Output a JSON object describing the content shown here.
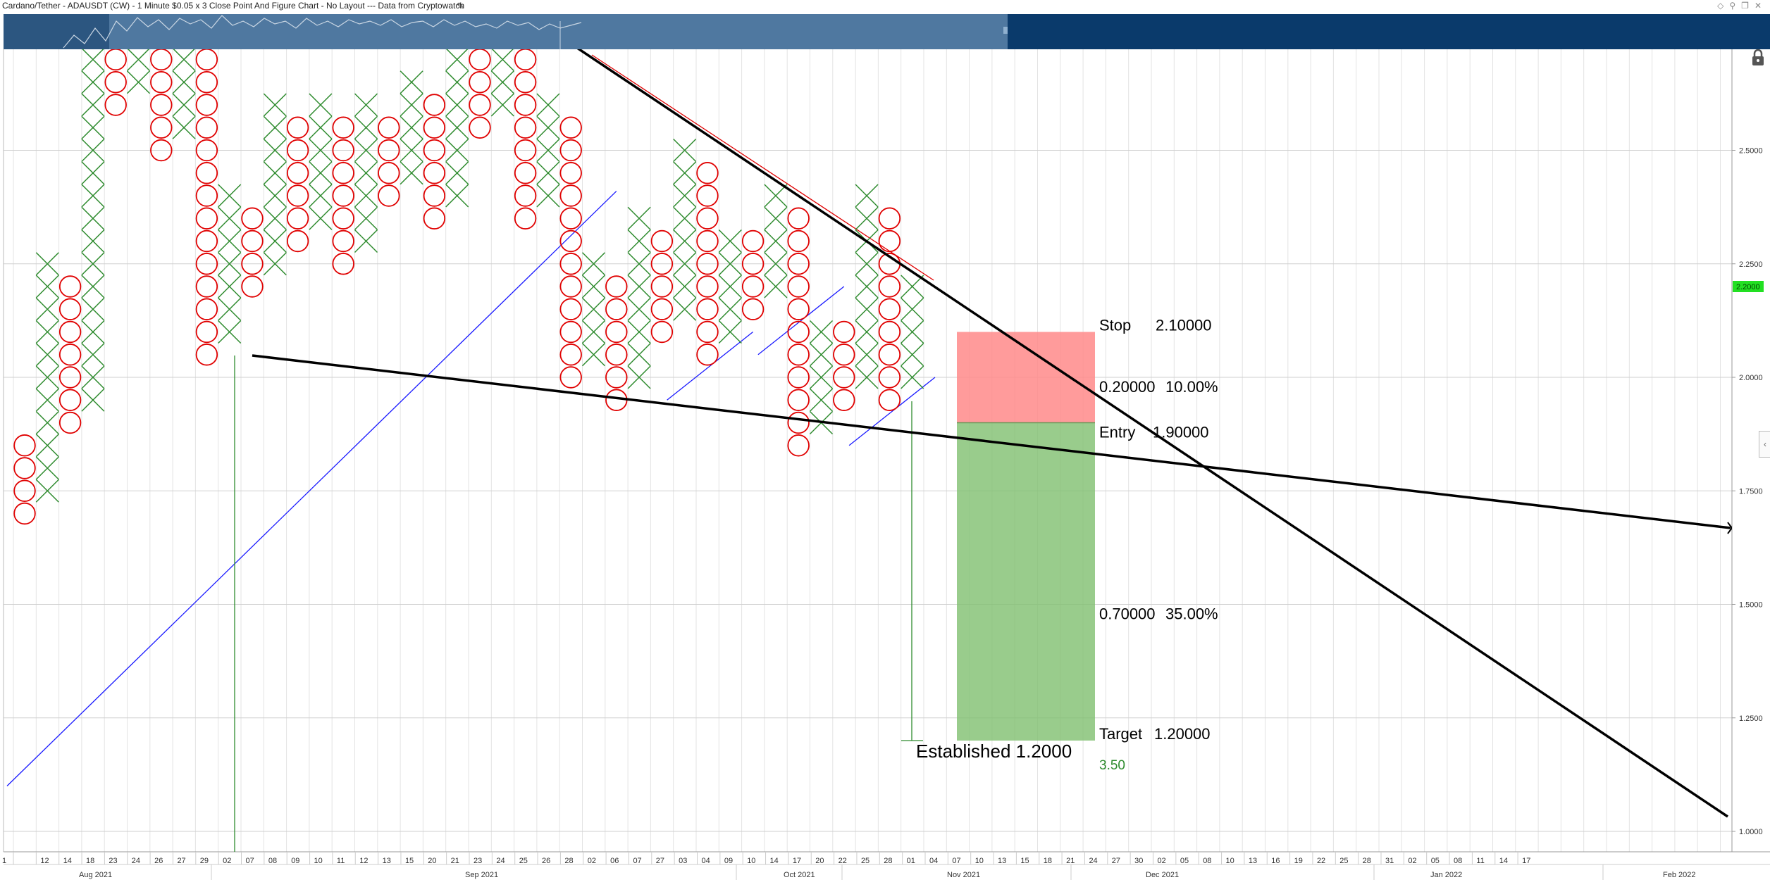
{
  "window": {
    "title": "Cardano/Tether - ADAUSDT (CW) - 1 Minute $0.05 x 3 Close Point And Figure Chart - No Layout --- Data from Cryptowatch",
    "edit_icon": "pencil-icon",
    "controls": [
      "diamond-icon",
      "pin-icon",
      "restore-icon",
      "close-icon"
    ]
  },
  "colors": {
    "x_mark": "#2e8b2e",
    "o_mark": "#e00000",
    "trendline": "#000000",
    "support_line": "#1a1aff",
    "stop_zone": "#ff8a8a",
    "target_zone": "#7fbf6f",
    "current_price_badge": "#22e022",
    "established_line": "#2e8b2e",
    "navigator": "#0a3a6b"
  },
  "chart_data": {
    "type": "point-and-figure",
    "box_size": 0.05,
    "reversal": 3,
    "price_axis": {
      "min": 1.0,
      "max": 2.5,
      "visible_range": [
        0.98,
        2.72
      ],
      "ticks": [
        "2.5000",
        "2.2500",
        "2.0000",
        "1.7500",
        "1.5000",
        "1.2500",
        "1.0000"
      ],
      "current_price": "2.2000",
      "position": "right",
      "grid": true
    },
    "time_axis": {
      "day_labels": [
        "1",
        "12",
        "14",
        "18",
        "23",
        "24",
        "26",
        "27",
        "29",
        "02",
        "07",
        "08",
        "09",
        "10",
        "11",
        "12",
        "13",
        "15",
        "20",
        "21",
        "23",
        "24",
        "25",
        "26",
        "28",
        "02",
        "06",
        "07",
        "27",
        "03",
        "04",
        "09",
        "10",
        "14",
        "17",
        "20",
        "22",
        "25",
        "28",
        "01",
        "04",
        "07",
        "10",
        "13",
        "15",
        "18",
        "21",
        "24",
        "27",
        "30",
        "02",
        "05",
        "08",
        "10",
        "13",
        "16",
        "19",
        "22",
        "25",
        "28",
        "31",
        "02",
        "05",
        "08",
        "11",
        "14",
        "17"
      ],
      "month_labels": [
        "Aug 2021",
        "Sep 2021",
        "Oct 2021",
        "Nov 2021",
        "Dec 2021",
        "Jan 2022",
        "Feb 2022"
      ]
    },
    "columns": [
      {
        "type": "O",
        "high": 1.85,
        "low": 1.7
      },
      {
        "type": "X",
        "low": 1.75,
        "high": 2.25
      },
      {
        "type": "O",
        "high": 2.2,
        "low": 1.9
      },
      {
        "type": "X",
        "low": 1.95,
        "high": 2.75
      },
      {
        "type": "O",
        "high": 2.75,
        "low": 2.6
      },
      {
        "type": "X",
        "low": 2.65,
        "high": 2.75
      },
      {
        "type": "O",
        "high": 2.75,
        "low": 2.5
      },
      {
        "type": "X",
        "low": 2.55,
        "high": 2.75
      },
      {
        "type": "O",
        "high": 2.75,
        "low": 2.05
      },
      {
        "type": "X",
        "low": 2.1,
        "high": 2.4
      },
      {
        "type": "O",
        "high": 2.35,
        "low": 2.2
      },
      {
        "type": "X",
        "low": 2.25,
        "high": 2.6
      },
      {
        "type": "O",
        "high": 2.55,
        "low": 2.3
      },
      {
        "type": "X",
        "low": 2.35,
        "high": 2.6
      },
      {
        "type": "O",
        "high": 2.55,
        "low": 2.25
      },
      {
        "type": "X",
        "low": 2.3,
        "high": 2.6
      },
      {
        "type": "O",
        "high": 2.55,
        "low": 2.4
      },
      {
        "type": "X",
        "low": 2.45,
        "high": 2.65
      },
      {
        "type": "O",
        "high": 2.6,
        "low": 2.35
      },
      {
        "type": "X",
        "low": 2.4,
        "high": 2.75
      },
      {
        "type": "O",
        "high": 2.75,
        "low": 2.55
      },
      {
        "type": "X",
        "low": 2.6,
        "high": 2.75
      },
      {
        "type": "O",
        "high": 2.75,
        "low": 2.35
      },
      {
        "type": "X",
        "low": 2.4,
        "high": 2.6
      },
      {
        "type": "O",
        "high": 2.55,
        "low": 2.0
      },
      {
        "type": "X",
        "low": 2.05,
        "high": 2.25
      },
      {
        "type": "O",
        "high": 2.2,
        "low": 1.95
      },
      {
        "type": "X",
        "low": 2.0,
        "high": 2.35
      },
      {
        "type": "O",
        "high": 2.3,
        "low": 2.1
      },
      {
        "type": "X",
        "low": 2.15,
        "high": 2.5
      },
      {
        "type": "O",
        "high": 2.45,
        "low": 2.05
      },
      {
        "type": "X",
        "low": 2.1,
        "high": 2.3
      },
      {
        "type": "O",
        "high": 2.3,
        "low": 2.15
      },
      {
        "type": "X",
        "low": 2.2,
        "high": 2.4
      },
      {
        "type": "O",
        "high": 2.35,
        "low": 1.85
      },
      {
        "type": "X",
        "low": 1.9,
        "high": 2.1
      },
      {
        "type": "O",
        "high": 2.1,
        "low": 1.95
      },
      {
        "type": "X",
        "low": 2.0,
        "high": 2.4
      },
      {
        "type": "O",
        "high": 2.35,
        "low": 1.95
      },
      {
        "type": "X",
        "low": 2.0,
        "high": 2.2
      }
    ],
    "trendlines": [
      {
        "name": "descending-resistance",
        "from": {
          "col": 25,
          "price": 2.75
        },
        "to": {
          "col": 75,
          "price": 1.03
        }
      },
      {
        "name": "support-trendline",
        "from": {
          "col": 11,
          "price": 2.05
        },
        "to": {
          "col": 76,
          "price": 1.67
        }
      }
    ],
    "support_lines": [
      {
        "from": {
          "col": 0,
          "price": 1.1
        },
        "to": {
          "col": 26,
          "price": 2.41
        }
      },
      {
        "from": {
          "col": 29,
          "price": 1.95
        },
        "to": {
          "col": 32,
          "price": 2.1
        }
      },
      {
        "from": {
          "col": 33,
          "price": 2.05
        },
        "to": {
          "col": 36,
          "price": 2.2
        }
      },
      {
        "from": {
          "col": 37,
          "price": 1.85
        },
        "to": {
          "col": 40,
          "price": 2.0
        }
      }
    ],
    "trade": {
      "stop": 2.1,
      "entry": 1.9,
      "target": 1.2,
      "stop_label": "Stop",
      "stop_value": "2.10000",
      "risk_label": "0.20000",
      "risk_pct": "10.00%",
      "entry_label": "Entry",
      "entry_value": "1.90000",
      "reward_label": "0.70000",
      "reward_pct": "35.00%",
      "target_label": "Target",
      "target_value": "1.20000",
      "ratio": "3.50"
    },
    "established": {
      "label": "Established 1.2000",
      "price": 1.2
    }
  }
}
